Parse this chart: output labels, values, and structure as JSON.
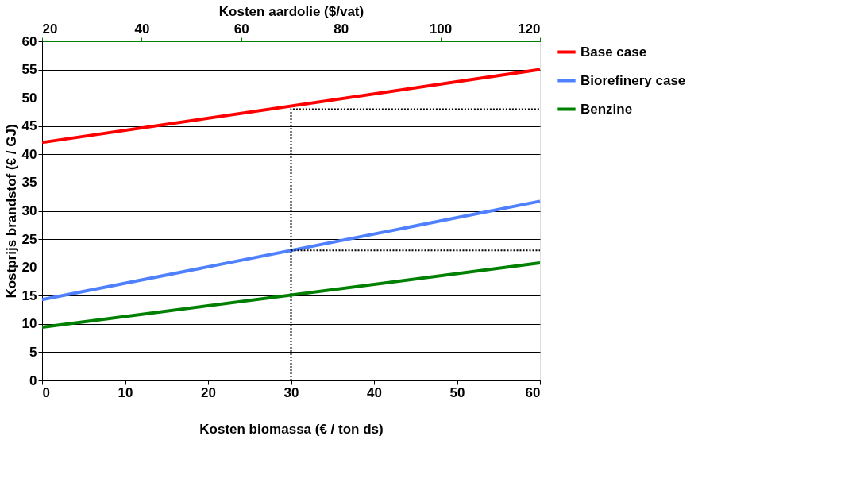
{
  "chart_data": {
    "type": "line",
    "xlabel": "Kosten biomassa (€ / ton ds)",
    "ylabel": "Kostprijs brandstof (€ / GJ)",
    "x2label": "Kosten aardolie ($/vat)",
    "xlim": [
      0,
      60
    ],
    "xticks": [
      0,
      10,
      20,
      30,
      40,
      50,
      60
    ],
    "ylim": [
      0,
      60
    ],
    "yticks": [
      0,
      5,
      10,
      15,
      20,
      25,
      30,
      35,
      40,
      45,
      50,
      55,
      60
    ],
    "x2lim": [
      20,
      120
    ],
    "x2ticks": [
      20,
      40,
      60,
      80,
      100,
      120
    ],
    "grid": "y",
    "legend": "right",
    "series": [
      {
        "name": "Base case",
        "color": "#ff0000",
        "x": [
          0,
          60
        ],
        "values": [
          42.1,
          55
        ]
      },
      {
        "name": "Biorefinery case",
        "color": "#4f81ff",
        "x": [
          0,
          60
        ],
        "values": [
          14.3,
          31.7
        ]
      },
      {
        "name": "Benzine",
        "color": "#008000",
        "axis": "x2",
        "x": [
          20,
          120
        ],
        "values": [
          9.4,
          20.8
        ]
      },
      {
        "color": "#000000",
        "line_style": "dotted",
        "x": [
          30,
          30,
          60
        ],
        "values": [
          0,
          48,
          48
        ]
      },
      {
        "color": "#000000",
        "line_style": "dotted",
        "x": [
          30,
          60
        ],
        "values": [
          23,
          23
        ]
      }
    ]
  }
}
